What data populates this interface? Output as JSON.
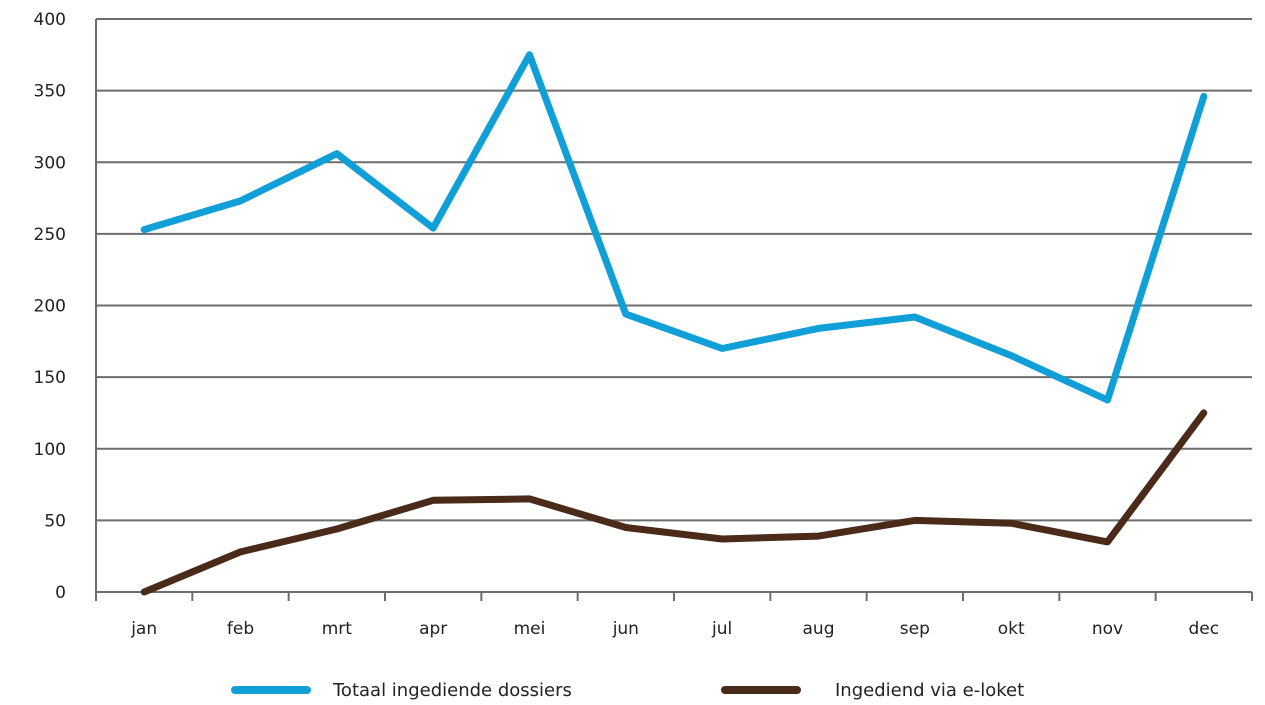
{
  "chart_data": {
    "type": "line",
    "title": "",
    "xlabel": "",
    "ylabel": "",
    "categories": [
      "jan",
      "feb",
      "mrt",
      "apr",
      "mei",
      "jun",
      "jul",
      "aug",
      "sep",
      "okt",
      "nov",
      "dec"
    ],
    "ylim": [
      0,
      400
    ],
    "yticks": [
      0,
      50,
      100,
      150,
      200,
      250,
      300,
      350,
      400
    ],
    "grid": true,
    "legend_position": "bottom",
    "series": [
      {
        "name": "Totaal ingediende dossiers",
        "color": "#109fd7",
        "values": [
          253,
          273,
          306,
          254,
          375,
          194,
          170,
          184,
          192,
          165,
          134,
          346
        ]
      },
      {
        "name": "Ingediend via e-loket",
        "color": "#4a2a19",
        "values": [
          0,
          28,
          44,
          64,
          65,
          45,
          37,
          39,
          50,
          48,
          35,
          125
        ]
      }
    ]
  }
}
